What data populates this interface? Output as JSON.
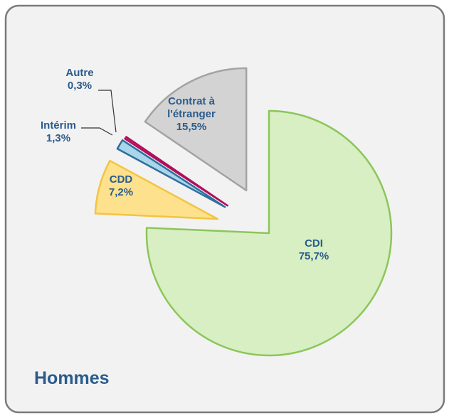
{
  "chart_data": {
    "type": "pie",
    "title": "Hommes",
    "categories": [
      "CDI",
      "CDD",
      "Intérim",
      "Autre",
      "Contrat à l'étranger"
    ],
    "values": [
      75.7,
      7.2,
      1.3,
      0.3,
      15.5
    ],
    "value_labels": [
      "75,7%",
      "7,2%",
      "1,3%",
      "0,3%",
      "15,5%"
    ],
    "colors": [
      "#d7efc2",
      "#fde18c",
      "#a9d6e8",
      "#e0307a",
      "#d3d3d3"
    ],
    "edge_colors": [
      "#8cc65a",
      "#f3c443",
      "#2f6f9f",
      "#b0105a",
      "#a3a3a3"
    ]
  }
}
